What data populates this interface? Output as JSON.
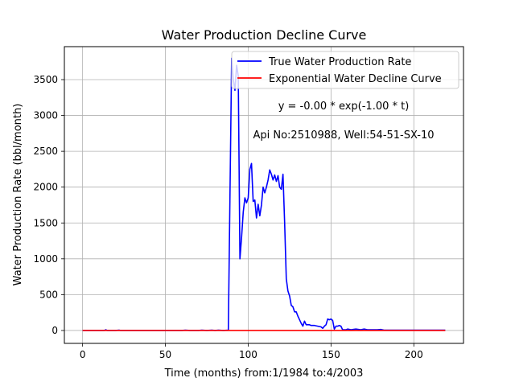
{
  "chart_data": {
    "type": "line",
    "title": "Water Production Decline Curve",
    "xlabel": "Time (months) from:1/1984 to:4/2003",
    "ylabel": "Water Production Rate (bbl/month)",
    "xlim": [
      -11,
      230
    ],
    "ylim": [
      -180,
      3960
    ],
    "xticks": [
      0,
      50,
      100,
      150,
      200
    ],
    "yticks": [
      0,
      500,
      1000,
      1500,
      2000,
      2500,
      3000,
      3500
    ],
    "grid": true,
    "legend_position": "top-right",
    "annotations": [
      "y = -0.00 * exp(-1.00 * t)",
      "Api No:2510988, Well:54-51-SX-10"
    ],
    "series": [
      {
        "name": "True Water Production Rate",
        "color": "#0000ff",
        "x": [
          0,
          5,
          10,
          13,
          14,
          15,
          20,
          22,
          23,
          25,
          30,
          35,
          40,
          45,
          50,
          55,
          60,
          62,
          65,
          70,
          72,
          75,
          78,
          80,
          82,
          85,
          88,
          89,
          90,
          91,
          92,
          93,
          94,
          95,
          96,
          97,
          98,
          99,
          100,
          101,
          102,
          103,
          104,
          105,
          106,
          107,
          108,
          109,
          110,
          111,
          112,
          113,
          114,
          115,
          116,
          117,
          118,
          119,
          120,
          121,
          122,
          123,
          124,
          125,
          126,
          127,
          128,
          129,
          130,
          131,
          132,
          133,
          134,
          135,
          136,
          137,
          138,
          140,
          142,
          144,
          145,
          146,
          147,
          148,
          149,
          150,
          151,
          152,
          153,
          154,
          155,
          156,
          157,
          158,
          159,
          160,
          162,
          165,
          168,
          170,
          172,
          175,
          178,
          180,
          182,
          185,
          190,
          195,
          200,
          205,
          210,
          215,
          219
        ],
        "values": [
          0,
          0,
          0,
          0,
          10,
          0,
          0,
          5,
          0,
          0,
          0,
          0,
          0,
          0,
          0,
          0,
          0,
          5,
          0,
          0,
          5,
          0,
          5,
          0,
          5,
          0,
          5,
          1900,
          3800,
          3500,
          3350,
          3700,
          3550,
          1000,
          1300,
          1650,
          1850,
          1780,
          1850,
          2250,
          2330,
          1800,
          1820,
          1570,
          1760,
          1600,
          1750,
          2000,
          1920,
          2000,
          2100,
          2240,
          2180,
          2100,
          2170,
          2080,
          2160,
          2000,
          1970,
          2180,
          1500,
          720,
          550,
          480,
          350,
          330,
          260,
          260,
          200,
          150,
          100,
          60,
          130,
          80,
          80,
          80,
          70,
          70,
          60,
          50,
          30,
          60,
          80,
          160,
          150,
          160,
          140,
          20,
          60,
          60,
          70,
          60,
          10,
          10,
          10,
          20,
          10,
          20,
          10,
          20,
          10,
          10,
          10,
          15,
          5,
          5,
          5,
          5,
          5,
          5,
          5,
          5,
          5
        ]
      },
      {
        "name": "Exponential Water Decline Curve",
        "color": "#ff0000",
        "x": [
          0,
          219
        ],
        "values": [
          0,
          0
        ]
      }
    ]
  }
}
